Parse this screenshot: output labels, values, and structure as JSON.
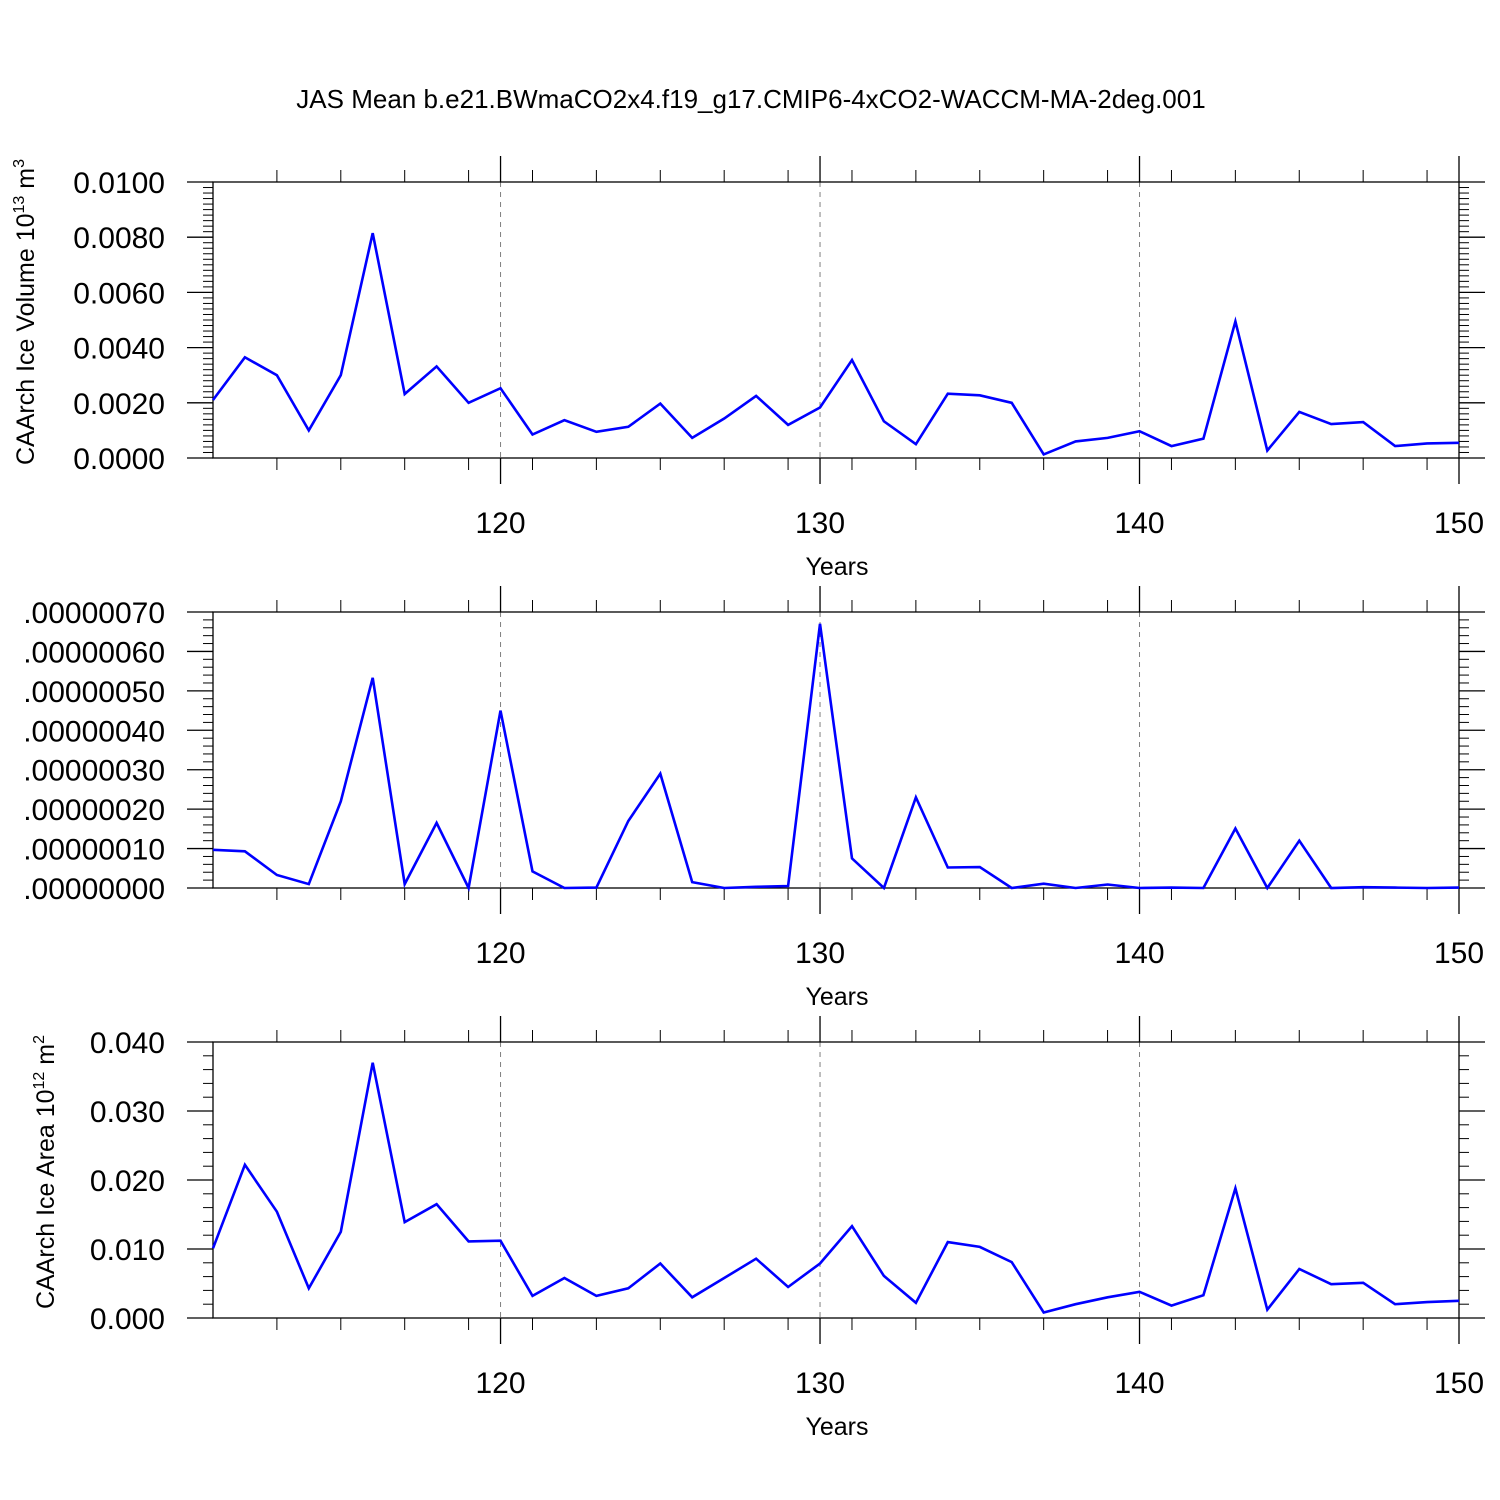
{
  "title": "JAS Mean b.e21.BWmaCO2x4.f19_g17.CMIP6-4xCO2-WACCM-MA-2deg.001",
  "colors": {
    "line": "#0000ff",
    "axis": "#000000",
    "grid": "#808080",
    "background": "#ffffff"
  },
  "chart_data": [
    {
      "type": "line",
      "xlabel": "Years",
      "ylabel": {
        "main": "CAArch Ice Volume 10",
        "sup": "13",
        "unit": " m",
        "unit_sup": "3"
      },
      "xlim": [
        111,
        150
      ],
      "ylim": [
        0,
        0.01
      ],
      "xticks": [
        120,
        130,
        140,
        150
      ],
      "xtick_labels": [
        "120",
        "130",
        "140",
        "150"
      ],
      "yticks": [
        0,
        0.002,
        0.004,
        0.006,
        0.008,
        0.01
      ],
      "ytick_labels": [
        "0.0000",
        "0.0020",
        "0.0040",
        "0.0060",
        "0.0080",
        "0.0100"
      ],
      "grid": "dashed vertical at major x ticks",
      "x": [
        111,
        112,
        113,
        114,
        115,
        116,
        117,
        118,
        119,
        120,
        121,
        122,
        123,
        124,
        125,
        126,
        127,
        128,
        129,
        130,
        131,
        132,
        133,
        134,
        135,
        136,
        137,
        138,
        139,
        140,
        141,
        142,
        143,
        144,
        145,
        146,
        147,
        148,
        149,
        150
      ],
      "values": [
        0.0021,
        0.00365,
        0.003,
        0.001,
        0.003,
        0.00815,
        0.00232,
        0.00332,
        0.002,
        0.00253,
        0.00085,
        0.00137,
        0.00095,
        0.00113,
        0.00197,
        0.00073,
        0.00143,
        0.00225,
        0.0012,
        0.00183,
        0.00355,
        0.00133,
        0.0005,
        0.00233,
        0.00227,
        0.002,
        0.00013,
        0.0006,
        0.00073,
        0.00097,
        0.00043,
        0.0007,
        0.00495,
        0.00027,
        0.00167,
        0.00123,
        0.0013,
        0.00043,
        0.00053,
        0.00055
      ]
    },
    {
      "type": "line",
      "xlabel": "Years",
      "ylabel": null,
      "xlim": [
        111,
        150
      ],
      "ylim": [
        0,
        7e-07
      ],
      "xticks": [
        120,
        130,
        140,
        150
      ],
      "xtick_labels": [
        "120",
        "130",
        "140",
        "150"
      ],
      "yticks": [
        0,
        1e-07,
        2e-07,
        3e-07,
        4e-07,
        5e-07,
        6e-07,
        7e-07
      ],
      "ytick_labels": [
        ".00000000",
        ".00000010",
        ".00000020",
        ".00000030",
        ".00000040",
        ".00000050",
        ".00000060",
        ".00000070"
      ],
      "grid": "dashed vertical at major x ticks",
      "x": [
        111,
        112,
        113,
        114,
        115,
        116,
        117,
        118,
        119,
        120,
        121,
        122,
        123,
        124,
        125,
        126,
        127,
        128,
        129,
        130,
        131,
        132,
        133,
        134,
        135,
        136,
        137,
        138,
        139,
        140,
        141,
        142,
        143,
        144,
        145,
        146,
        147,
        148,
        149,
        150
      ],
      "values": [
        9.7e-08,
        9.3e-08,
        3.3e-08,
        1e-08,
        2.2e-07,
        5.33e-07,
        1e-08,
        1.65e-07,
        0.0,
        4.5e-07,
        4.2e-08,
        0.0,
        1e-09,
        1.7e-07,
        2.9e-07,
        1.5e-08,
        0.0,
        3e-09,
        5e-09,
        6.7e-07,
        7.5e-08,
        0.0,
        2.3e-07,
        5.2e-08,
        5.3e-08,
        0.0,
        1.1e-08,
        0.0,
        9e-09,
        0.0,
        1e-09,
        0.0,
        1.51e-07,
        0.0,
        1.2e-07,
        0.0,
        2e-09,
        1e-09,
        0.0,
        1e-09
      ]
    },
    {
      "type": "line",
      "xlabel": "Years",
      "ylabel": {
        "main": "CAArch Ice Area 10",
        "sup": "12",
        "unit": " m",
        "unit_sup": "2"
      },
      "xlim": [
        111,
        150
      ],
      "ylim": [
        0,
        0.04
      ],
      "xticks": [
        120,
        130,
        140,
        150
      ],
      "xtick_labels": [
        "120",
        "130",
        "140",
        "150"
      ],
      "yticks": [
        0,
        0.01,
        0.02,
        0.03,
        0.04
      ],
      "ytick_labels": [
        "0.000",
        "0.010",
        "0.020",
        "0.030",
        "0.040"
      ],
      "grid": "dashed vertical at major x ticks",
      "x": [
        111,
        112,
        113,
        114,
        115,
        116,
        117,
        118,
        119,
        120,
        121,
        122,
        123,
        124,
        125,
        126,
        127,
        128,
        129,
        130,
        131,
        132,
        133,
        134,
        135,
        136,
        137,
        138,
        139,
        140,
        141,
        142,
        143,
        144,
        145,
        146,
        147,
        148,
        149,
        150
      ],
      "values": [
        0.0101,
        0.0222,
        0.0154,
        0.0043,
        0.0125,
        0.037,
        0.0139,
        0.0165,
        0.0111,
        0.0112,
        0.0032,
        0.0058,
        0.0032,
        0.0043,
        0.0079,
        0.003,
        0.0058,
        0.0086,
        0.0045,
        0.0079,
        0.0133,
        0.0061,
        0.0022,
        0.011,
        0.0103,
        0.0081,
        0.0008,
        0.002,
        0.003,
        0.0038,
        0.0018,
        0.0033,
        0.0188,
        0.0012,
        0.0071,
        0.0049,
        0.0051,
        0.002,
        0.0023,
        0.0025
      ]
    }
  ]
}
